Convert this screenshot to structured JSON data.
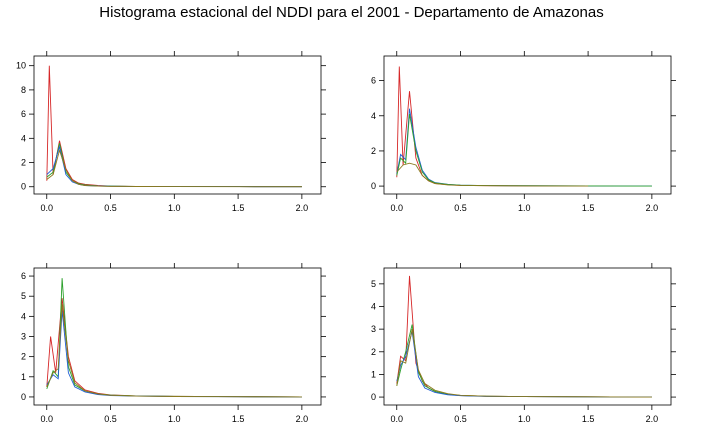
{
  "title": "Histograma estacional del NDDI para el 2001 - Departamento de Amazonas",
  "colors": {
    "red": "#d62728",
    "green": "#2ca02c",
    "blue": "#1f5fd6",
    "olive": "#8c7a1e"
  },
  "chart_data": [
    {
      "type": "line",
      "xlim": [
        -0.1,
        2.15
      ],
      "ylim": [
        -0.6,
        10.8
      ],
      "xticks": [
        "0.0",
        "0.5",
        "1.0",
        "1.5",
        "2.0"
      ],
      "yticks": [
        "0",
        "2",
        "4",
        "6",
        "8",
        "10"
      ],
      "series": [
        {
          "color": "red",
          "x": [
            0.0,
            0.02,
            0.05,
            0.1,
            0.15,
            0.2,
            0.25,
            0.3,
            0.4,
            0.5,
            0.7,
            1.0,
            1.5,
            2.0
          ],
          "y": [
            0.5,
            10.0,
            1.0,
            3.8,
            1.5,
            0.6,
            0.3,
            0.2,
            0.1,
            0.05,
            0.03,
            0.02,
            0.01,
            0.0
          ]
        },
        {
          "color": "green",
          "x": [
            0.0,
            0.05,
            0.1,
            0.15,
            0.2,
            0.25,
            0.3,
            0.4,
            0.5,
            0.7,
            1.0,
            1.5,
            2.0
          ],
          "y": [
            0.8,
            1.2,
            3.6,
            1.2,
            0.5,
            0.25,
            0.15,
            0.08,
            0.05,
            0.03,
            0.02,
            0.01,
            0.0
          ]
        },
        {
          "color": "blue",
          "x": [
            0.0,
            0.05,
            0.1,
            0.15,
            0.2,
            0.25,
            0.3,
            0.4,
            0.5,
            0.7,
            1.0,
            1.5,
            2.0
          ],
          "y": [
            1.0,
            1.5,
            3.3,
            1.0,
            0.4,
            0.2,
            0.1,
            0.06,
            0.04,
            0.02,
            0.01,
            0.01,
            0.0
          ]
        },
        {
          "color": "olive",
          "x": [
            0.0,
            0.05,
            0.1,
            0.15,
            0.2,
            0.25,
            0.3,
            0.4,
            0.5,
            0.7,
            1.0,
            1.5,
            2.0
          ],
          "y": [
            0.6,
            1.0,
            3.0,
            1.4,
            0.5,
            0.2,
            0.1,
            0.05,
            0.03,
            0.02,
            0.01,
            0.0,
            0.0
          ]
        }
      ]
    },
    {
      "type": "line",
      "xlim": [
        -0.1,
        2.15
      ],
      "ylim": [
        -0.45,
        7.4
      ],
      "xticks": [
        "0.0",
        "0.5",
        "1.0",
        "1.5",
        "2.0"
      ],
      "yticks": [
        "0",
        "2",
        "4",
        "6"
      ],
      "series": [
        {
          "color": "red",
          "x": [
            0.0,
            0.02,
            0.05,
            0.1,
            0.15,
            0.2,
            0.25,
            0.3,
            0.4,
            0.5,
            0.7,
            1.0,
            1.7
          ],
          "y": [
            0.5,
            6.8,
            1.2,
            5.4,
            1.6,
            0.6,
            0.3,
            0.15,
            0.08,
            0.04,
            0.02,
            0.01,
            0.0
          ]
        },
        {
          "color": "blue",
          "x": [
            0.0,
            0.03,
            0.07,
            0.1,
            0.15,
            0.2,
            0.25,
            0.3,
            0.4,
            0.5,
            0.7,
            1.0,
            1.5,
            2.0
          ],
          "y": [
            0.7,
            1.8,
            1.5,
            4.4,
            2.2,
            0.9,
            0.4,
            0.2,
            0.1,
            0.05,
            0.03,
            0.02,
            0.01,
            0.0
          ]
        },
        {
          "color": "green",
          "x": [
            0.0,
            0.03,
            0.07,
            0.1,
            0.15,
            0.2,
            0.25,
            0.3,
            0.4,
            0.5,
            0.7,
            1.0,
            1.5,
            2.0
          ],
          "y": [
            0.6,
            1.6,
            1.3,
            4.1,
            2.0,
            0.8,
            0.35,
            0.18,
            0.09,
            0.05,
            0.03,
            0.02,
            0.01,
            0.0
          ]
        },
        {
          "color": "olive",
          "x": [
            0.0,
            0.05,
            0.1,
            0.15,
            0.2,
            0.25,
            0.3,
            0.4,
            0.5,
            0.7,
            1.0,
            1.5
          ],
          "y": [
            0.8,
            1.2,
            1.3,
            1.2,
            0.6,
            0.3,
            0.15,
            0.07,
            0.04,
            0.02,
            0.01,
            0.0
          ]
        }
      ]
    },
    {
      "type": "line",
      "xlim": [
        -0.1,
        2.15
      ],
      "ylim": [
        -0.4,
        6.4
      ],
      "xticks": [
        "0.0",
        "0.5",
        "1.0",
        "1.5",
        "2.0"
      ],
      "yticks": [
        "0",
        "1",
        "2",
        "3",
        "4",
        "5",
        "6"
      ],
      "series": [
        {
          "color": "red",
          "x": [
            0.0,
            0.03,
            0.07,
            0.12,
            0.17,
            0.22,
            0.3,
            0.4,
            0.5,
            0.7,
            1.0,
            1.5,
            2.0
          ],
          "y": [
            0.5,
            3.0,
            1.2,
            4.9,
            2.0,
            0.8,
            0.35,
            0.18,
            0.1,
            0.05,
            0.03,
            0.01,
            0.0
          ]
        },
        {
          "color": "green",
          "x": [
            0.0,
            0.05,
            0.09,
            0.12,
            0.17,
            0.22,
            0.3,
            0.4,
            0.5,
            0.7,
            1.0,
            1.5,
            2.0
          ],
          "y": [
            0.4,
            1.3,
            1.0,
            5.9,
            1.5,
            0.6,
            0.3,
            0.15,
            0.09,
            0.05,
            0.03,
            0.01,
            0.0
          ]
        },
        {
          "color": "blue",
          "x": [
            0.0,
            0.05,
            0.09,
            0.12,
            0.17,
            0.22,
            0.3,
            0.4,
            0.5,
            0.7,
            1.0,
            1.5,
            2.0
          ],
          "y": [
            0.6,
            1.1,
            0.9,
            4.3,
            1.2,
            0.5,
            0.25,
            0.12,
            0.07,
            0.04,
            0.02,
            0.01,
            0.0
          ]
        },
        {
          "color": "olive",
          "x": [
            0.0,
            0.05,
            0.09,
            0.12,
            0.17,
            0.22,
            0.3,
            0.4,
            0.5,
            0.7,
            1.0,
            1.5,
            2.0
          ],
          "y": [
            0.5,
            1.2,
            1.4,
            4.6,
            1.8,
            0.7,
            0.3,
            0.15,
            0.08,
            0.04,
            0.02,
            0.01,
            0.0
          ]
        }
      ]
    },
    {
      "type": "line",
      "xlim": [
        -0.1,
        2.15
      ],
      "ylim": [
        -0.35,
        5.7
      ],
      "xticks": [
        "0.0",
        "0.5",
        "1.0",
        "1.5",
        "2.0"
      ],
      "yticks": [
        "0",
        "1",
        "2",
        "3",
        "4",
        "5"
      ],
      "series": [
        {
          "color": "red",
          "x": [
            0.0,
            0.03,
            0.07,
            0.1,
            0.15,
            0.2,
            0.25,
            0.3,
            0.4,
            0.5,
            0.7,
            1.0,
            1.5,
            2.0
          ],
          "y": [
            0.6,
            1.8,
            1.6,
            5.35,
            1.5,
            0.7,
            0.4,
            0.25,
            0.12,
            0.07,
            0.04,
            0.02,
            0.01,
            0.0
          ]
        },
        {
          "color": "green",
          "x": [
            0.0,
            0.03,
            0.07,
            0.12,
            0.17,
            0.22,
            0.3,
            0.4,
            0.5,
            0.7,
            1.0,
            1.5,
            2.0
          ],
          "y": [
            0.5,
            1.2,
            2.0,
            3.2,
            1.1,
            0.5,
            0.25,
            0.12,
            0.07,
            0.04,
            0.02,
            0.01,
            0.0
          ]
        },
        {
          "color": "blue",
          "x": [
            0.0,
            0.03,
            0.07,
            0.12,
            0.17,
            0.22,
            0.3,
            0.4,
            0.5,
            0.7,
            1.0,
            1.5,
            2.0
          ],
          "y": [
            0.7,
            1.4,
            1.8,
            2.9,
            0.9,
            0.4,
            0.2,
            0.1,
            0.06,
            0.03,
            0.02,
            0.01,
            0.0
          ]
        },
        {
          "color": "olive",
          "x": [
            0.0,
            0.03,
            0.07,
            0.12,
            0.17,
            0.22,
            0.3,
            0.4,
            0.5,
            0.7,
            1.0,
            1.5,
            2.0
          ],
          "y": [
            0.5,
            1.6,
            1.5,
            3.0,
            1.2,
            0.6,
            0.3,
            0.15,
            0.08,
            0.04,
            0.02,
            0.01,
            0.0
          ]
        }
      ]
    }
  ]
}
